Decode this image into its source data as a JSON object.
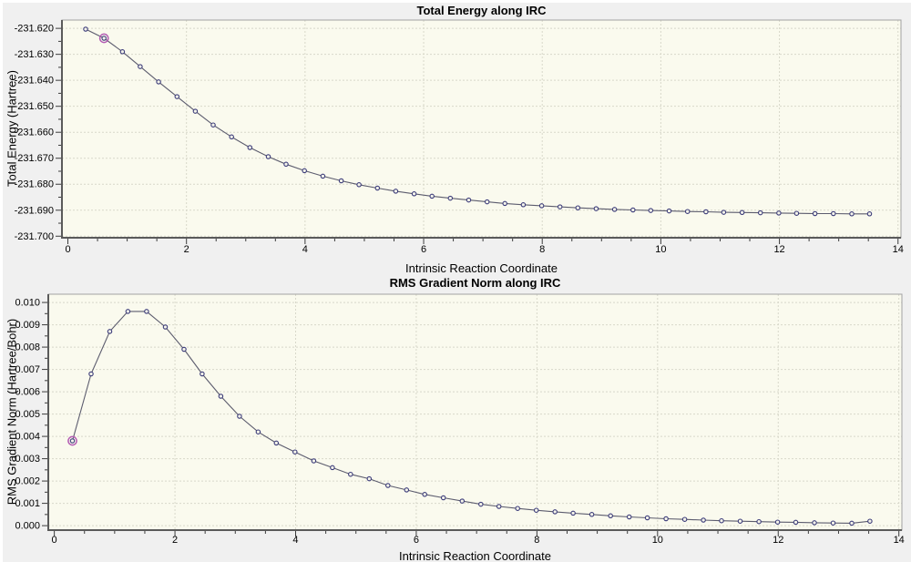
{
  "colors": {
    "window_bg": "#f0f0f0",
    "bevel": "#ffffff",
    "plot_bg": "#fafaee",
    "grid": "#d8d8ca",
    "frame": "#a2a2a2",
    "axis": "#5a5a5a",
    "tick": "#3c3c3c",
    "line": "#5c5c6e",
    "marker": "#3c3c7a",
    "marker_fill": "#f4f4ea",
    "highlight": "#b35cb3",
    "text": "#000000"
  },
  "chart_data": [
    {
      "type": "line",
      "title": "Total Energy along IRC",
      "xlabel": "Intrinsic Reaction Coordinate",
      "ylabel": "Total Energy (Hartree)",
      "grid": true,
      "legend": null,
      "xlim": [
        -0.1,
        14.05
      ],
      "ylim": [
        -231.7006,
        -231.6168
      ],
      "x_ticks": [
        {
          "v": 0,
          "label": "0"
        },
        {
          "v": 2,
          "label": "2"
        },
        {
          "v": 4,
          "label": "4"
        },
        {
          "v": 6,
          "label": "6"
        },
        {
          "v": 8,
          "label": "8"
        },
        {
          "v": 10,
          "label": "10"
        },
        {
          "v": 12,
          "label": "12"
        },
        {
          "v": 14,
          "label": "14"
        }
      ],
      "x_minor_step": 0.5,
      "y_ticks": [
        {
          "v": -231.62,
          "label": "-231.620"
        },
        {
          "v": -231.63,
          "label": "-231.630"
        },
        {
          "v": -231.64,
          "label": "-231.640"
        },
        {
          "v": -231.65,
          "label": "-231.650"
        },
        {
          "v": -231.66,
          "label": "-231.660"
        },
        {
          "v": -231.67,
          "label": "-231.670"
        },
        {
          "v": -231.68,
          "label": "-231.680"
        },
        {
          "v": -231.69,
          "label": "-231.690"
        },
        {
          "v": -231.7,
          "label": "-231.700"
        }
      ],
      "highlight_index": 1,
      "x": [
        0.3,
        0.61,
        0.92,
        1.22,
        1.53,
        1.84,
        2.15,
        2.45,
        2.76,
        3.07,
        3.38,
        3.68,
        3.99,
        4.3,
        4.61,
        4.91,
        5.22,
        5.53,
        5.84,
        6.14,
        6.45,
        6.76,
        7.07,
        7.37,
        7.68,
        7.99,
        8.3,
        8.6,
        8.91,
        9.22,
        9.53,
        9.83,
        10.14,
        10.45,
        10.76,
        11.06,
        11.37,
        11.68,
        11.99,
        12.29,
        12.6,
        12.91,
        13.22,
        13.52
      ],
      "y": [
        -231.6203,
        -231.6238,
        -231.629,
        -231.6347,
        -231.6406,
        -231.6463,
        -231.6519,
        -231.6572,
        -231.6618,
        -231.6659,
        -231.6694,
        -231.6723,
        -231.6748,
        -231.6769,
        -231.6787,
        -231.6802,
        -231.6815,
        -231.6827,
        -231.6837,
        -231.6846,
        -231.6854,
        -231.6861,
        -231.6868,
        -231.6874,
        -231.6879,
        -231.6883,
        -231.6887,
        -231.6891,
        -231.6894,
        -231.6897,
        -231.6899,
        -231.6901,
        -231.6903,
        -231.6905,
        -231.6906,
        -231.6908,
        -231.6909,
        -231.691,
        -231.6911,
        -231.6912,
        -231.6913,
        -231.6913,
        -231.6914,
        -231.6914
      ]
    },
    {
      "type": "line",
      "title": "RMS Gradient Norm along IRC",
      "xlabel": "Intrinsic Reaction Coordinate",
      "ylabel": "RMS Gradient Norm (Hartree/Bohr)",
      "grid": true,
      "legend": null,
      "xlim": [
        -0.1,
        14.05
      ],
      "ylim": [
        -0.0002,
        0.01037
      ],
      "x_ticks": [
        {
          "v": 0,
          "label": "0"
        },
        {
          "v": 2,
          "label": "2"
        },
        {
          "v": 4,
          "label": "4"
        },
        {
          "v": 6,
          "label": "6"
        },
        {
          "v": 8,
          "label": "8"
        },
        {
          "v": 10,
          "label": "10"
        },
        {
          "v": 12,
          "label": "12"
        },
        {
          "v": 14,
          "label": "14"
        }
      ],
      "x_minor_step": 0.5,
      "y_ticks": [
        {
          "v": 0.01,
          "label": "0.010"
        },
        {
          "v": 0.009,
          "label": "0.009"
        },
        {
          "v": 0.008,
          "label": "0.008"
        },
        {
          "v": 0.007,
          "label": "0.007"
        },
        {
          "v": 0.006,
          "label": "0.006"
        },
        {
          "v": 0.005,
          "label": "0.005"
        },
        {
          "v": 0.004,
          "label": "0.004"
        },
        {
          "v": 0.003,
          "label": "0.003"
        },
        {
          "v": 0.002,
          "label": "0.002"
        },
        {
          "v": 0.001,
          "label": "0.001"
        },
        {
          "v": 0.0,
          "label": "0.000"
        }
      ],
      "highlight_index": 0,
      "x": [
        0.3,
        0.61,
        0.92,
        1.22,
        1.53,
        1.84,
        2.15,
        2.45,
        2.76,
        3.07,
        3.38,
        3.68,
        3.99,
        4.3,
        4.61,
        4.91,
        5.22,
        5.53,
        5.84,
        6.14,
        6.45,
        6.76,
        7.07,
        7.37,
        7.68,
        7.99,
        8.3,
        8.6,
        8.91,
        9.22,
        9.53,
        9.83,
        10.14,
        10.45,
        10.76,
        11.06,
        11.37,
        11.68,
        11.99,
        12.29,
        12.6,
        12.91,
        13.22,
        13.52
      ],
      "y": [
        0.0038,
        0.0068,
        0.0087,
        0.0096,
        0.0096,
        0.0089,
        0.0079,
        0.0068,
        0.0058,
        0.0049,
        0.0042,
        0.0037,
        0.0033,
        0.0029,
        0.0026,
        0.0023,
        0.0021,
        0.0018,
        0.0016,
        0.0014,
        0.00125,
        0.0011,
        0.00096,
        0.00086,
        0.00077,
        0.00069,
        0.00062,
        0.00056,
        0.0005,
        0.00044,
        0.00039,
        0.00035,
        0.00031,
        0.00028,
        0.00025,
        0.00022,
        0.0002,
        0.00018,
        0.00016,
        0.00015,
        0.00013,
        0.00012,
        0.00011,
        0.0002
      ]
    }
  ]
}
